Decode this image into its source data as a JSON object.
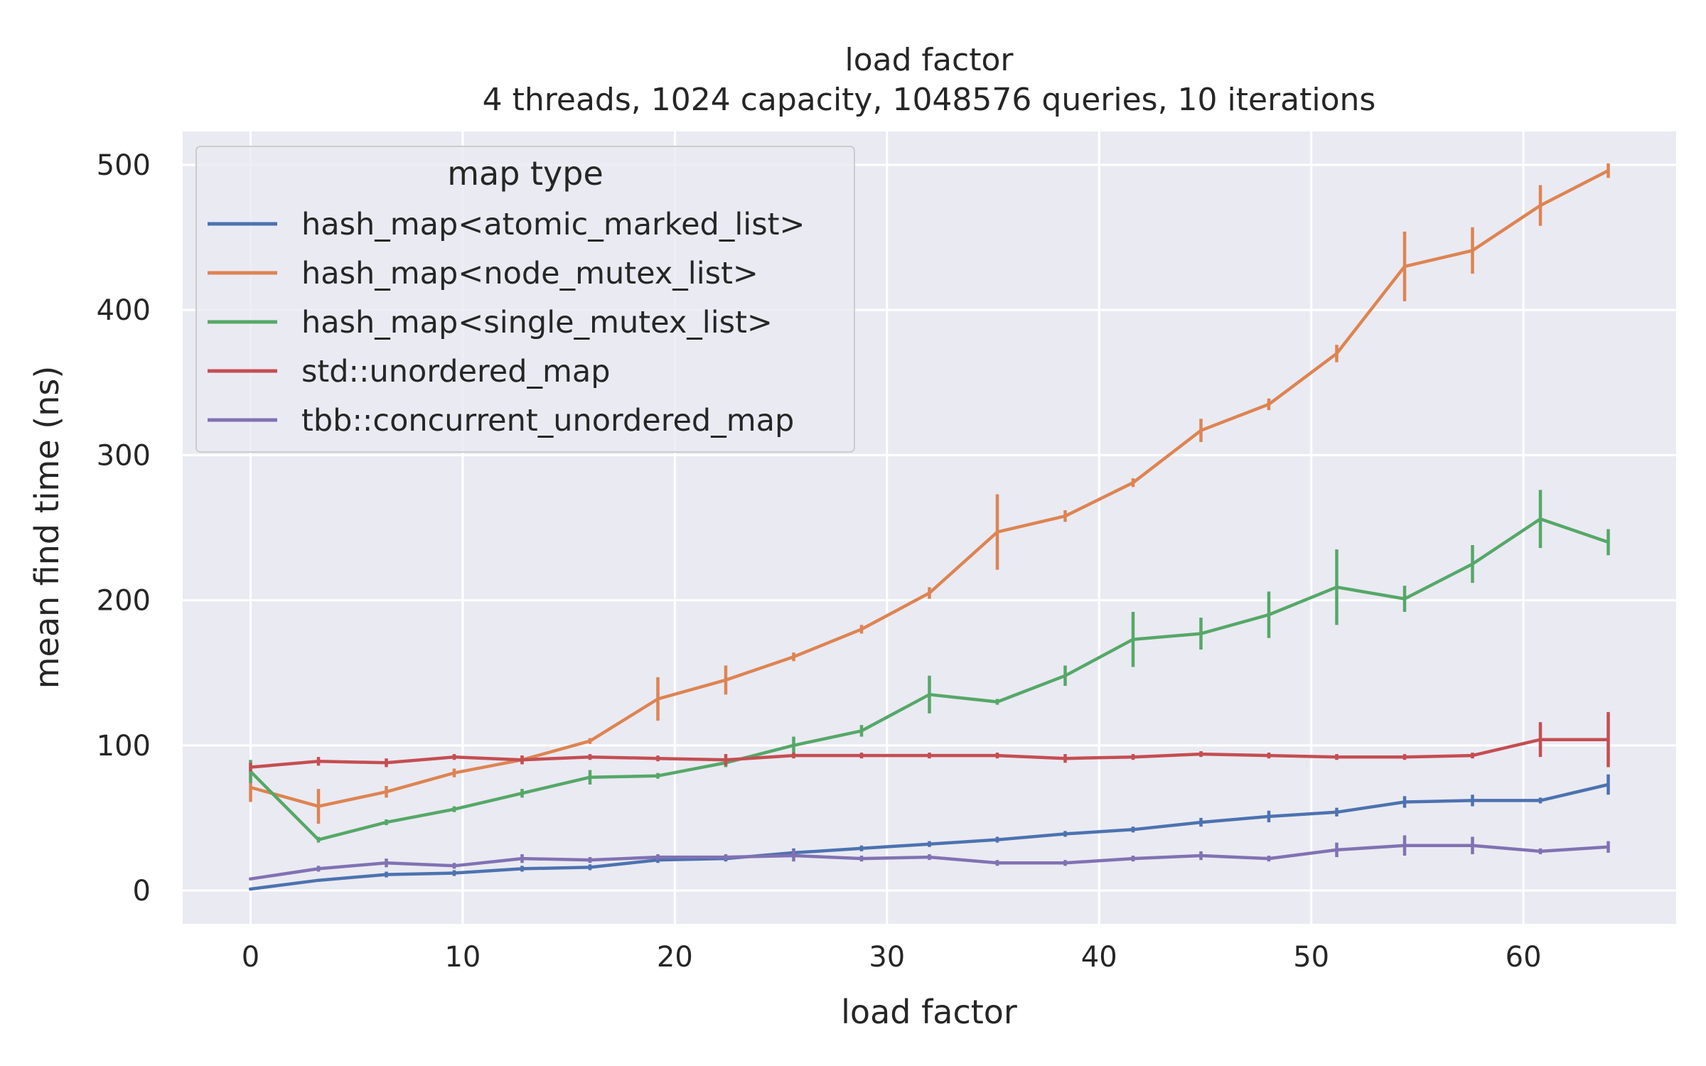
{
  "chart_data": {
    "type": "line",
    "title": "load factor",
    "subtitle": "4 threads, 1024 capacity, 1048576 queries, 10 iterations",
    "xlabel": "load factor",
    "ylabel": "mean find time (ns)",
    "xlim": [
      -3.2,
      67.2
    ],
    "ylim": [
      -23,
      523
    ],
    "xticks": [
      0,
      10,
      20,
      30,
      40,
      50,
      60
    ],
    "yticks": [
      0,
      100,
      200,
      300,
      400,
      500
    ],
    "grid": true,
    "legend": {
      "title": "map type",
      "position": "top-left"
    },
    "x": [
      0,
      3.2,
      6.4,
      9.6,
      12.8,
      16,
      19.2,
      22.4,
      25.6,
      28.8,
      32,
      35.2,
      38.4,
      41.6,
      44.8,
      48,
      51.2,
      54.4,
      57.6,
      60.8,
      64
    ],
    "series": [
      {
        "name": "hash_map<atomic_marked_list>",
        "color": "#4c72b0",
        "values": [
          1,
          7,
          11,
          12,
          15,
          16,
          21,
          22,
          26,
          29,
          32,
          35,
          39,
          42,
          47,
          51,
          54,
          61,
          62,
          62,
          73
        ],
        "errors": [
          1,
          1,
          2,
          2,
          2,
          2,
          2,
          2,
          3,
          2,
          2,
          2,
          2,
          2,
          3,
          4,
          3,
          4,
          4,
          2,
          7
        ]
      },
      {
        "name": "hash_map<node_mutex_list>",
        "color": "#dd8452",
        "values": [
          71,
          58,
          68,
          81,
          90,
          103,
          132,
          145,
          161,
          180,
          205,
          247,
          258,
          281,
          317,
          335,
          370,
          430,
          441,
          472,
          496
        ],
        "errors": [
          10,
          12,
          4,
          3,
          3,
          2,
          15,
          10,
          3,
          3,
          4,
          26,
          4,
          3,
          8,
          4,
          6,
          24,
          16,
          14,
          5
        ]
      },
      {
        "name": "hash_map<single_mutex_list>",
        "color": "#55a868",
        "values": [
          82,
          35,
          47,
          56,
          67,
          78,
          79,
          88,
          100,
          110,
          135,
          130,
          148,
          173,
          177,
          190,
          209,
          201,
          225,
          256,
          240
        ],
        "errors": [
          8,
          2,
          2,
          2,
          3,
          5,
          2,
          3,
          6,
          4,
          13,
          2,
          7,
          19,
          11,
          16,
          26,
          9,
          13,
          20,
          9
        ]
      },
      {
        "name": "std::unordered_map",
        "color": "#c44e52",
        "values": [
          85,
          89,
          88,
          92,
          90,
          92,
          91,
          90,
          93,
          93,
          93,
          93,
          91,
          92,
          94,
          93,
          92,
          92,
          93,
          104,
          104
        ],
        "errors": [
          3,
          3,
          3,
          2,
          3,
          2,
          2,
          4,
          2,
          2,
          2,
          2,
          3,
          2,
          2,
          2,
          2,
          2,
          2,
          12,
          19
        ]
      },
      {
        "name": "tbb::concurrent_unordered_map",
        "color": "#8172b3",
        "values": [
          8,
          15,
          19,
          17,
          22,
          21,
          23,
          23,
          24,
          22,
          23,
          19,
          19,
          22,
          24,
          22,
          28,
          31,
          31,
          27,
          30
        ],
        "errors": [
          1,
          2,
          3,
          2,
          3,
          2,
          2,
          2,
          4,
          2,
          2,
          2,
          2,
          2,
          3,
          2,
          5,
          7,
          6,
          2,
          4
        ]
      }
    ]
  }
}
